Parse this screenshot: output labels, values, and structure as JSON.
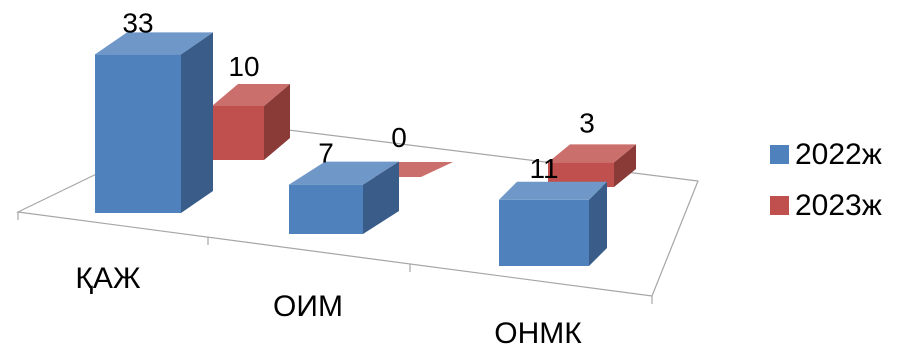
{
  "chart_data": {
    "type": "bar",
    "style": "3d-column",
    "categories": [
      "ҚАЖ",
      "ОИМ",
      "ОНМК"
    ],
    "series": [
      {
        "name": "2022ж",
        "values": [
          33,
          7,
          11
        ],
        "color": "#4f81bd"
      },
      {
        "name": "2023ж",
        "values": [
          10,
          0,
          3
        ],
        "color": "#c0504d"
      }
    ],
    "legend": "right",
    "grid": false
  }
}
